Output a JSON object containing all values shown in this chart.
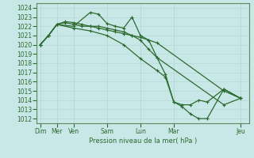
{
  "background_color": "#c8e8e8",
  "grid_color": "#b8d8d8",
  "line_color": "#2d6a2d",
  "spine_color": "#5a8a5a",
  "xlabel": "Pression niveau de la mer( hPa )",
  "ylim": [
    1011.5,
    1024.5
  ],
  "yticks": [
    1012,
    1013,
    1014,
    1015,
    1016,
    1017,
    1018,
    1019,
    1020,
    1021,
    1022,
    1023,
    1024
  ],
  "xtick_labels": [
    "Dim",
    "Mer",
    "Ven",
    "Sam",
    "Lun",
    "Mar",
    "Jeu"
  ],
  "xtick_positions": [
    0,
    1,
    2,
    4,
    6,
    8,
    12
  ],
  "xlim": [
    -0.2,
    12.5
  ],
  "marker": "+",
  "markersize": 3,
  "linewidth": 0.9,
  "series": [
    {
      "x": [
        0,
        0.5,
        1,
        1.5,
        2,
        2.5,
        3,
        3.5,
        4,
        4.5,
        5,
        5.5,
        6,
        6.5,
        7,
        11,
        12
      ],
      "y": [
        1020.0,
        1021.0,
        1022.2,
        1022.4,
        1022.2,
        1022.0,
        1022.0,
        1021.8,
        1021.6,
        1021.4,
        1021.2,
        1021.0,
        1020.8,
        1020.5,
        1020.2,
        1015.0,
        1014.2
      ]
    },
    {
      "x": [
        0,
        0.5,
        1,
        1.5,
        2,
        2.5,
        3,
        3.5,
        4,
        4.5,
        5,
        5.5,
        6,
        6.5,
        7,
        11,
        12
      ],
      "y": [
        1020.0,
        1021.0,
        1022.2,
        1022.5,
        1022.4,
        1022.2,
        1022.0,
        1022.0,
        1021.8,
        1021.6,
        1021.4,
        1021.0,
        1020.5,
        1019.5,
        1018.6,
        1013.5,
        1014.2
      ]
    },
    {
      "x": [
        0,
        0.5,
        1,
        2,
        3,
        3.5,
        4,
        4.5,
        5,
        5.5,
        6,
        6.5,
        7,
        7.5,
        8,
        8.5,
        9,
        9.5,
        10,
        11,
        12
      ],
      "y": [
        1020.0,
        1021.0,
        1022.2,
        1022.0,
        1023.5,
        1023.3,
        1022.3,
        1022.0,
        1021.8,
        1023.0,
        1021.0,
        1020.5,
        1018.6,
        1016.8,
        1013.8,
        1013.5,
        1013.5,
        1014.0,
        1013.8,
        1015.2,
        1014.2
      ]
    },
    {
      "x": [
        0,
        0.5,
        1,
        2,
        3,
        4,
        5,
        6,
        7,
        7.5,
        8,
        8.5,
        9,
        9.5,
        10,
        11,
        12
      ],
      "y": [
        1020.0,
        1021.0,
        1022.2,
        1021.8,
        1021.5,
        1021.0,
        1020.0,
        1018.5,
        1017.2,
        1016.5,
        1013.8,
        1013.3,
        1012.5,
        1012.0,
        1012.0,
        1015.2,
        1014.2
      ]
    }
  ]
}
